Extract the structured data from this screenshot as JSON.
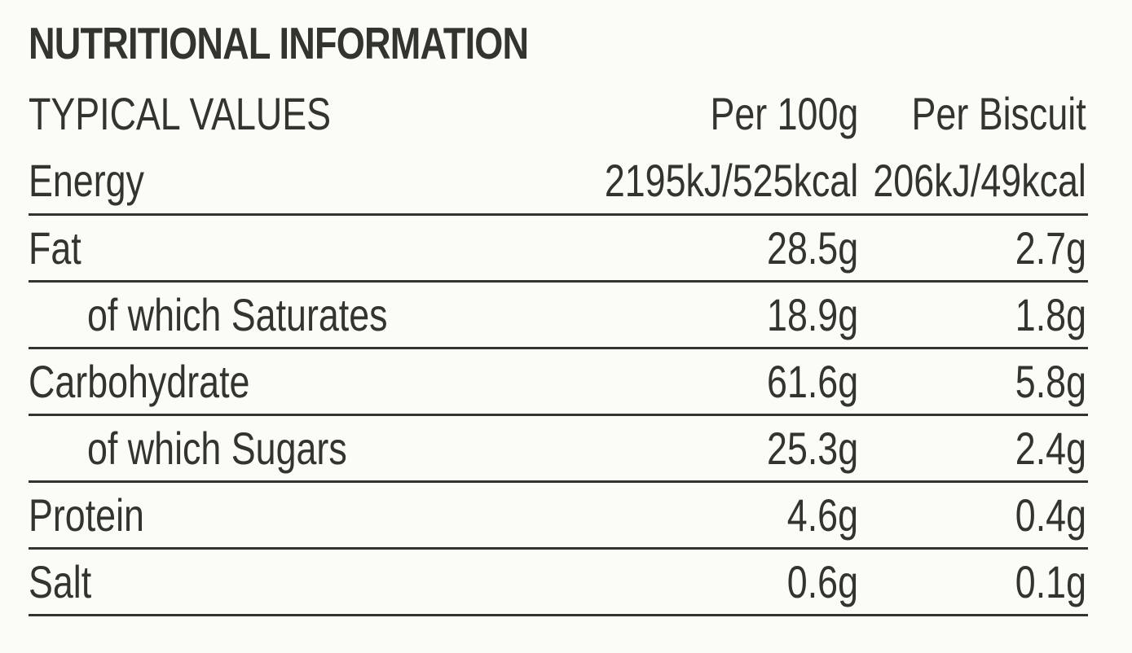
{
  "title": "NUTRITIONAL INFORMATION",
  "header": {
    "label": "TYPICAL VALUES",
    "col1": "Per 100g",
    "col2": "Per Biscuit"
  },
  "rows": [
    {
      "label": "Energy",
      "per100g": "2195kJ/525kcal",
      "perBiscuit": "206kJ/49kcal"
    },
    {
      "label": "Fat",
      "per100g": "28.5g",
      "perBiscuit": "2.7g"
    },
    {
      "label": "of which Saturates",
      "per100g": "18.9g",
      "perBiscuit": "1.8g"
    },
    {
      "label": "Carbohydrate",
      "per100g": "61.6g",
      "perBiscuit": "5.8g"
    },
    {
      "label": "of which Sugars",
      "per100g": "25.3g",
      "perBiscuit": "2.4g"
    },
    {
      "label": "Protein",
      "per100g": "4.6g",
      "perBiscuit": "0.4g"
    },
    {
      "label": "Salt",
      "per100g": "0.6g",
      "perBiscuit": "0.1g"
    }
  ],
  "colors": {
    "background": "#fcfcf7",
    "text": "#33332f"
  }
}
